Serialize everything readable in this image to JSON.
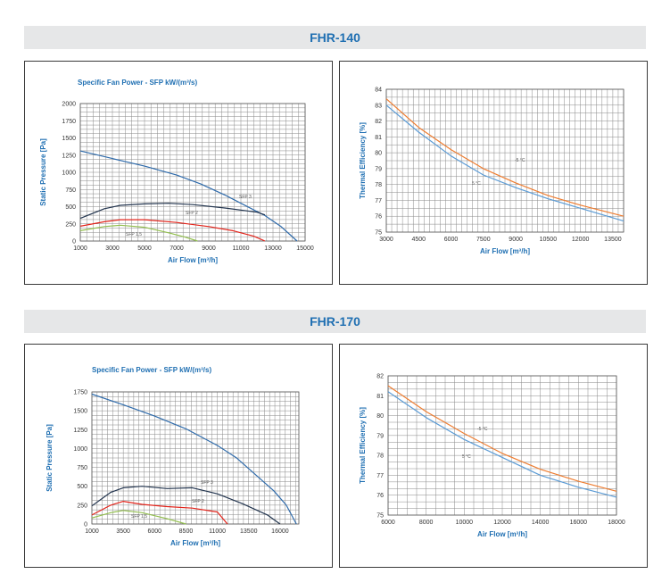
{
  "sections": [
    {
      "title": "FHR-140"
    },
    {
      "title": "FHR-170"
    }
  ],
  "colors": {
    "band_bg": "#e6e7e8",
    "band_text": "#1f6fb2",
    "axis_label": "#1f6fb2",
    "grid": "#8a8a8a",
    "sfp3": "#2f6bab",
    "sfp2": "#22344e",
    "sfp1": "#e3241b",
    "sfp05": "#93bf4f",
    "eff_minus5": "#ee7d31",
    "eff_plus5": "#5b9bd5"
  },
  "chart_data": [
    {
      "id": "fhr140-sfp",
      "type": "line",
      "title": "Specific Fan Power - SFP kW/(m³/s)",
      "xlabel": "Air Flow [m³/h]",
      "ylabel": "Static Pressure [Pa]",
      "xlim": [
        1000,
        15000
      ],
      "ylim": [
        0,
        2000
      ],
      "xticks": [
        1000,
        3000,
        5000,
        7000,
        9000,
        11000,
        13000,
        15000
      ],
      "yticks": [
        0,
        250,
        500,
        750,
        1000,
        1250,
        1500,
        1750,
        2000
      ],
      "ytick_labels": [
        "0",
        "250",
        "500",
        "750",
        "1000",
        "1250",
        "1500",
        "1750",
        "2000"
      ],
      "grid": true,
      "series": [
        {
          "name": "",
          "color_key": "sfp3",
          "x": [
            1000,
            3000,
            5000,
            7000,
            8500,
            10000,
            11500,
            12500,
            13500,
            14500
          ],
          "y": [
            1310,
            1200,
            1090,
            960,
            830,
            670,
            490,
            370,
            210,
            0
          ]
        },
        {
          "name": "SFP 3",
          "color_key": "sfp2",
          "x": [
            1000,
            2500,
            3500,
            5000,
            6500,
            8000,
            10000,
            12000,
            12500
          ],
          "y": [
            330,
            470,
            520,
            540,
            550,
            530,
            480,
            420,
            380
          ]
        },
        {
          "name": "SFP 2",
          "color_key": "sfp1",
          "x": [
            1000,
            2500,
            3500,
            5000,
            7000,
            9000,
            10500,
            11800,
            12500
          ],
          "y": [
            215,
            280,
            310,
            310,
            270,
            210,
            150,
            70,
            0
          ]
        },
        {
          "name": "SFP 1,5",
          "color_key": "sfp05",
          "x": [
            1000,
            2500,
            3500,
            5000,
            6500,
            7500,
            8300
          ],
          "y": [
            150,
            210,
            230,
            200,
            120,
            60,
            0
          ]
        }
      ],
      "curve_labels": [
        "SFP 3",
        "SFP 2",
        "SFP 1,5"
      ]
    },
    {
      "id": "fhr140-eff",
      "type": "line",
      "title": "",
      "xlabel": "Air Flow [m³/h]",
      "ylabel": "Thermal Efficiency [%]",
      "xlim": [
        3000,
        14000
      ],
      "ylim": [
        75,
        84
      ],
      "xticks": [
        3000,
        4500,
        6000,
        7500,
        9000,
        10500,
        12000,
        13500
      ],
      "yticks": [
        75,
        76,
        77,
        78,
        79,
        80,
        81,
        82,
        83,
        84
      ],
      "grid": true,
      "series": [
        {
          "name": "-5 °C",
          "color_key": "eff_minus5",
          "x": [
            3000,
            4500,
            6000,
            7500,
            9000,
            10500,
            12000,
            14000
          ],
          "y": [
            83.4,
            81.6,
            80.2,
            79.0,
            78.1,
            77.3,
            76.7,
            76.0
          ]
        },
        {
          "name": "5 °C",
          "color_key": "eff_plus5",
          "x": [
            3000,
            4500,
            6000,
            7500,
            9000,
            10500,
            12000,
            14000
          ],
          "y": [
            83.0,
            81.3,
            79.8,
            78.6,
            77.8,
            77.1,
            76.5,
            75.7
          ]
        }
      ],
      "curve_labels": [
        "-5 °C",
        "5 °C"
      ]
    },
    {
      "id": "fhr170-sfp",
      "type": "line",
      "title": "Specific Fan Power - SFP kW/(m³/s)",
      "xlabel": "Air Flow [m³/h]",
      "ylabel": "Static Pressure [Pa]",
      "xlim": [
        1000,
        17500
      ],
      "ylim": [
        0,
        1750
      ],
      "xticks": [
        1000,
        3500,
        6000,
        8500,
        11000,
        13500,
        16000
      ],
      "yticks": [
        0,
        250,
        500,
        750,
        1000,
        1250,
        1500,
        1750
      ],
      "ytick_labels": [
        "0",
        "250",
        "500",
        "750",
        "1000",
        "1250",
        "1500",
        "1750"
      ],
      "grid": true,
      "series": [
        {
          "name": "",
          "color_key": "sfp3",
          "x": [
            1000,
            3500,
            6000,
            8500,
            11000,
            12500,
            14000,
            15500,
            16500,
            17300
          ],
          "y": [
            1720,
            1580,
            1430,
            1260,
            1040,
            880,
            660,
            440,
            250,
            0
          ]
        },
        {
          "name": "SFP 3",
          "color_key": "sfp2",
          "x": [
            1000,
            2500,
            3500,
            5000,
            7000,
            9000,
            11000,
            13000,
            15000,
            16000
          ],
          "y": [
            240,
            420,
            480,
            500,
            470,
            480,
            400,
            270,
            120,
            0
          ]
        },
        {
          "name": "SFP 2",
          "color_key": "sfp1",
          "x": [
            1000,
            2500,
            3500,
            5000,
            7000,
            9000,
            11000,
            11800
          ],
          "y": [
            120,
            250,
            300,
            260,
            230,
            210,
            160,
            0
          ]
        },
        {
          "name": "SFP 1,5",
          "color_key": "sfp05",
          "x": [
            1000,
            2500,
            3500,
            5000,
            7000,
            8500
          ],
          "y": [
            80,
            150,
            180,
            150,
            70,
            0
          ]
        }
      ],
      "curve_labels": [
        "SFP 3",
        "SFP 2",
        "SFP 1,5"
      ]
    },
    {
      "id": "fhr170-eff",
      "type": "line",
      "title": "",
      "xlabel": "Air Flow [m³/h]",
      "ylabel": "Thermal Efficiency [%]",
      "xlim": [
        6000,
        18000
      ],
      "ylim": [
        75,
        82
      ],
      "xticks": [
        6000,
        8000,
        10000,
        12000,
        14000,
        16000,
        18000
      ],
      "yticks": [
        75,
        76,
        77,
        78,
        79,
        80,
        81,
        82
      ],
      "grid": true,
      "series": [
        {
          "name": "-5 °C",
          "color_key": "eff_minus5",
          "x": [
            6000,
            8000,
            10000,
            12000,
            14000,
            16000,
            18000
          ],
          "y": [
            81.5,
            80.2,
            79.1,
            78.1,
            77.3,
            76.7,
            76.2
          ]
        },
        {
          "name": "5 °C",
          "color_key": "eff_plus5",
          "x": [
            6000,
            8000,
            10000,
            12000,
            14000,
            16000,
            18000
          ],
          "y": [
            81.2,
            79.9,
            78.8,
            77.9,
            77.0,
            76.4,
            75.9
          ]
        }
      ],
      "curve_labels": [
        "-5 °C",
        "5 °C"
      ]
    }
  ]
}
